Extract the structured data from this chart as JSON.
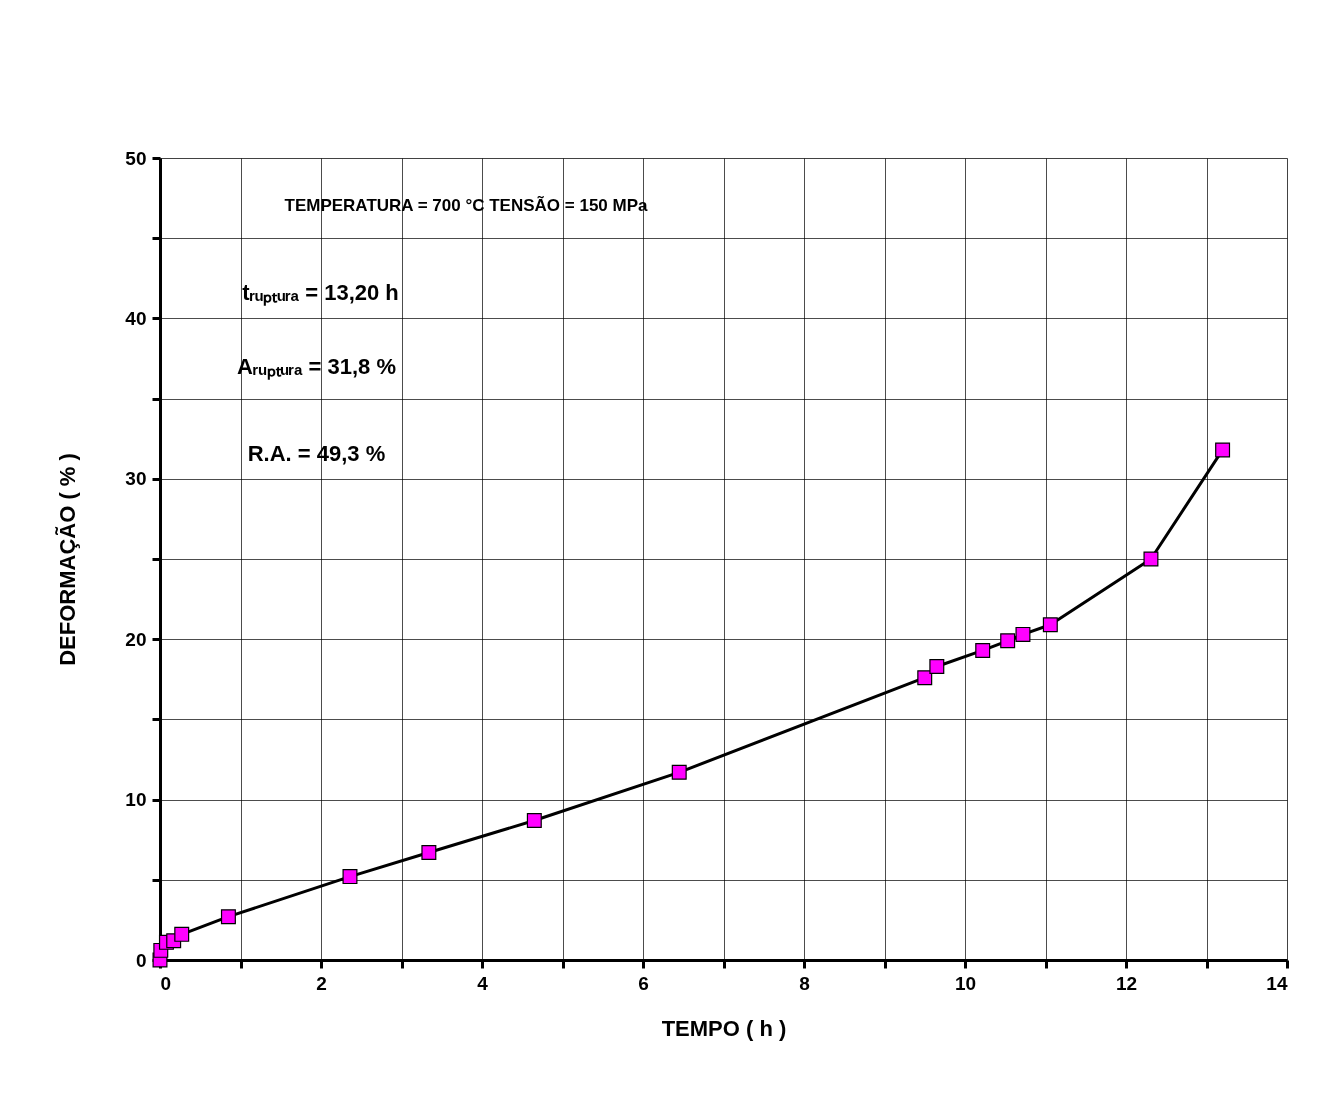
{
  "chart_data": {
    "type": "line",
    "xlabel": "TEMPO  ( h )",
    "ylabel": "DEFORMAÇÃO ( % )",
    "x": [
      0,
      0.01,
      0.08,
      0.17,
      0.27,
      0.85,
      2.36,
      3.34,
      4.65,
      6.45,
      9.5,
      9.65,
      10.22,
      10.53,
      10.72,
      11.06,
      12.31,
      13.2
    ],
    "series": [
      {
        "color": "#ff00ff",
        "values": [
          0,
          0.6,
          1.1,
          1.2,
          1.6,
          2.7,
          5.2,
          6.7,
          8.7,
          11.7,
          17.6,
          18.3,
          19.3,
          19.9,
          20.3,
          20.9,
          25.0,
          31.8
        ]
      }
    ],
    "xlim": [
      0,
      14
    ],
    "xticks": [
      0,
      {
        "value": 1,
        "label": null
      },
      2,
      {
        "value": 3,
        "label": null
      },
      4,
      {
        "value": 5,
        "label": null
      },
      6,
      {
        "value": 7,
        "label": null
      },
      8,
      {
        "value": 9,
        "label": null
      },
      10,
      {
        "value": 11,
        "label": null
      },
      12,
      {
        "value": 13,
        "label": null
      },
      14
    ],
    "ylim": [
      0,
      50
    ],
    "yticks": [
      0,
      {
        "value": 5,
        "label": null
      },
      10,
      {
        "value": 15,
        "label": null
      },
      20,
      {
        "value": 25,
        "label": null
      },
      30,
      {
        "value": 35,
        "label": null
      },
      40,
      {
        "value": 45,
        "label": null
      },
      50
    ],
    "grid": true,
    "marker": "square",
    "line_style": "solid",
    "annotations": [
      "TEMPERATURA = 700 °C    TENSÃO = 150  MPa",
      "tᵣᵤₚₜᵤᵣₐ  =   13,20    h",
      "Aᵣᵤₚₜᵤᵣₐ = 31,8 %",
      "R.A. =    49,3  %"
    ]
  }
}
